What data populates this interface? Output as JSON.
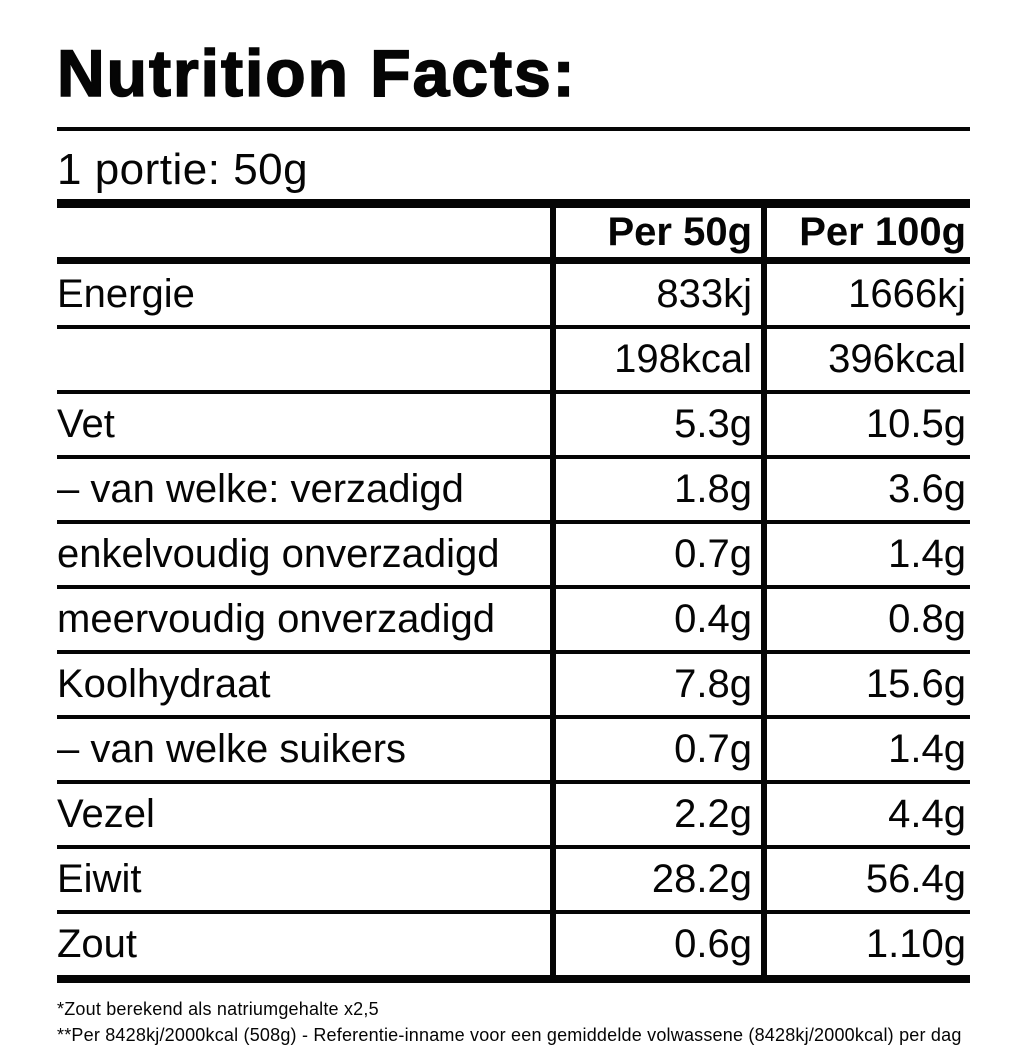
{
  "label": {
    "title": "Nutrition Facts:",
    "serving_line": "1 portie: 50g"
  },
  "table": {
    "columns": [
      "Per 50g",
      "Per 100g"
    ],
    "rows": [
      {
        "label": "Energie",
        "per50": "833kj",
        "per100": "1666kj"
      },
      {
        "label": "",
        "per50": "198kcal",
        "per100": "396kcal"
      },
      {
        "label": "Vet",
        "per50": "5.3g",
        "per100": "10.5g"
      },
      {
        "label": "– van welke: verzadigd",
        "per50": "1.8g",
        "per100": "3.6g"
      },
      {
        "label": "enkelvoudig onverzadigd",
        "per50": "0.7g",
        "per100": "1.4g"
      },
      {
        "label": "meervoudig onverzadigd",
        "per50": "0.4g",
        "per100": "0.8g"
      },
      {
        "label": "Koolhydraat",
        "per50": "7.8g",
        "per100": "15.6g"
      },
      {
        "label": "– van welke suikers",
        "per50": "0.7g",
        "per100": "1.4g"
      },
      {
        "label": "Vezel",
        "per50": "2.2g",
        "per100": "4.4g"
      },
      {
        "label": "Eiwit",
        "per50": "28.2g",
        "per100": "56.4g"
      },
      {
        "label": "Zout",
        "per50": "0.6g",
        "per100": "1.10g"
      }
    ]
  },
  "footnotes": [
    "*Zout berekend als natriumgehalte x2,5",
    "**Per 8428kj/2000kcal (508g) - Referentie-inname voor een gemiddelde volwassene (8428kj/2000kcal) per dag"
  ],
  "colors": {
    "text": "#050505",
    "background": "#ffffff"
  }
}
